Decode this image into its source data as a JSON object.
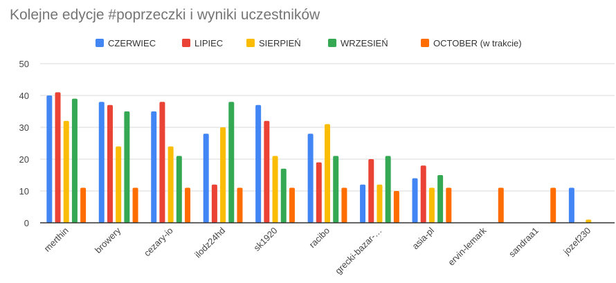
{
  "chart_data": {
    "type": "bar",
    "title": "Kolejne edycje #poprzeczki i wyniki uczestników",
    "xlabel": "",
    "ylabel": "",
    "ylim": [
      0,
      50
    ],
    "yticks": [
      0,
      10,
      20,
      30,
      40,
      50
    ],
    "grid": true,
    "legend_position": "top",
    "categories": [
      "merthin",
      "browery",
      "cezary-io",
      "ilodz24hd",
      "sk1920",
      "racibo",
      "grecki-bazar-…",
      "asia-pl",
      "ervin-lemark",
      "sandraa1",
      "jozef230"
    ],
    "series": [
      {
        "name": "CZERWIEC",
        "color": "#4285f4",
        "values": [
          40,
          38,
          35,
          28,
          37,
          28,
          12,
          14,
          null,
          null,
          11
        ]
      },
      {
        "name": "LIPIEC",
        "color": "#ea4335",
        "values": [
          41,
          37,
          38,
          12,
          32,
          19,
          20,
          18,
          null,
          null,
          null
        ]
      },
      {
        "name": "SIERPIEŃ",
        "color": "#fbbc04",
        "values": [
          32,
          24,
          24,
          30,
          21,
          31,
          12,
          11,
          null,
          null,
          1
        ]
      },
      {
        "name": "WRZESIEŃ",
        "color": "#34a853",
        "values": [
          39,
          35,
          21,
          38,
          17,
          21,
          21,
          15,
          null,
          null,
          null
        ]
      },
      {
        "name": "OCTOBER (w trakcie)",
        "color": "#ff6d01",
        "values": [
          11,
          11,
          11,
          11,
          11,
          11,
          10,
          11,
          11,
          11,
          null
        ]
      }
    ]
  }
}
